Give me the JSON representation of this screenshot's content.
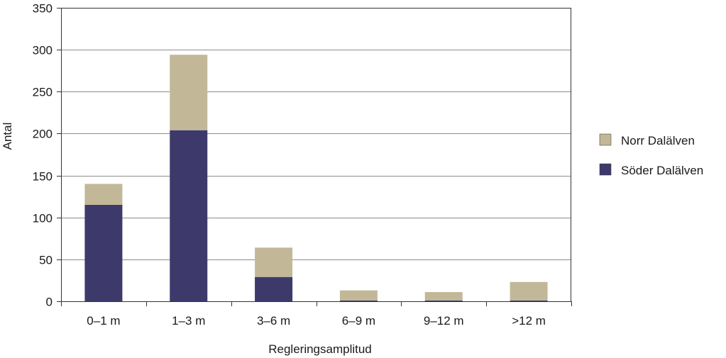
{
  "chart_data": {
    "type": "bar",
    "stacked": true,
    "categories": [
      "0–1 m",
      "1–3 m",
      "3–6 m",
      "6–9 m",
      "9–12 m",
      ">12 m"
    ],
    "series": [
      {
        "name": "Söder Dalälven",
        "color": "#3d3a6b",
        "values": [
          115,
          204,
          29,
          1,
          1,
          1
        ]
      },
      {
        "name": "Norr Dalälven",
        "color": "#c2b898",
        "values": [
          25,
          90,
          35,
          12,
          10,
          22
        ]
      }
    ],
    "xlabel": "Regleringsamplitud",
    "ylabel": "Antal",
    "ylim": [
      0,
      350
    ],
    "yticks": [
      0,
      50,
      100,
      150,
      200,
      250,
      300,
      350
    ],
    "grid": true,
    "legend": "right",
    "legend_order": [
      "Norr Dalälven",
      "Söder Dalälven"
    ]
  }
}
